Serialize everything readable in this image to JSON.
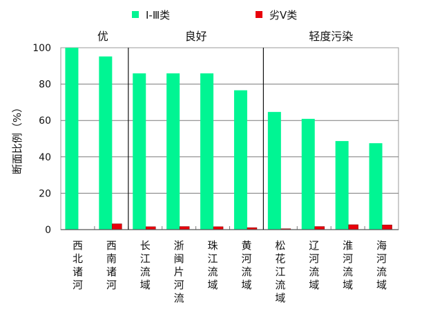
{
  "chart_data": {
    "type": "bar",
    "title": "",
    "xlabel": "",
    "ylabel": "断面比例（%）",
    "ylim": [
      0,
      100
    ],
    "yticks": [
      "0",
      "20",
      "40",
      "60",
      "80",
      "100"
    ],
    "grid": true,
    "legend_position": "top-center",
    "categories": [
      "西北诸河",
      "西南诸河",
      "长江流域",
      "浙闽片河流",
      "珠江流域",
      "黄河流域",
      "松花江流域",
      "辽河流域",
      "淮河流域",
      "海河流域"
    ],
    "series": [
      {
        "name": "Ⅰ-Ⅲ类",
        "color": "#00f593",
        "values": [
          100,
          95.2,
          85.9,
          85.9,
          85.9,
          76.6,
          64.7,
          60.9,
          48.7,
          47.5
        ]
      },
      {
        "name": "劣Ⅴ类",
        "color": "#e8000b",
        "values": [
          0,
          3.2,
          1.6,
          1.7,
          1.6,
          1.1,
          0.5,
          1.7,
          2.7,
          2.6
        ]
      }
    ],
    "groups": [
      {
        "label": "优",
        "start": 0,
        "end": 1
      },
      {
        "label": "良好",
        "start": 2,
        "end": 5
      },
      {
        "label": "轻度污染",
        "start": 6,
        "end": 9
      }
    ]
  }
}
